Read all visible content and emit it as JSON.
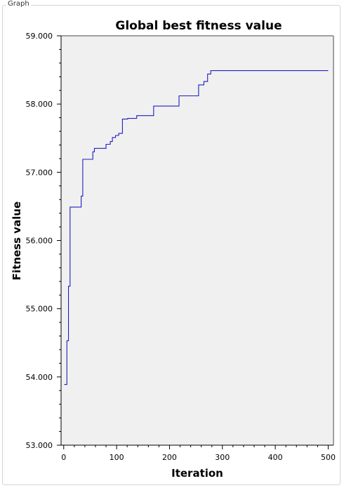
{
  "group": {
    "label": "Graph"
  },
  "chart_data": {
    "type": "line",
    "line_style": "step",
    "title": "Global best fitness value",
    "xlabel": "Iteration",
    "ylabel": "Fitness value",
    "xlim": [
      -5,
      510
    ],
    "ylim": [
      53,
      59
    ],
    "xticks": [
      0,
      100,
      200,
      300,
      400,
      500
    ],
    "xtick_labels": [
      "0",
      "100",
      "200",
      "300",
      "400",
      "500"
    ],
    "yticks": [
      53,
      54,
      55,
      56,
      57,
      58,
      59
    ],
    "ytick_labels": [
      "53.000",
      "54.000",
      "55.000",
      "56.000",
      "57.000",
      "58.000",
      "59.000"
    ],
    "grid": false,
    "colors": {
      "line": "#1f1fbf",
      "plot_bg": "#f0f0f0",
      "frame": "#a0a0a0"
    },
    "series": [
      {
        "x": [
          1,
          6,
          9,
          12,
          19,
          33,
          36,
          55,
          58,
          60,
          80,
          88,
          92,
          98,
          104,
          111,
          121,
          138,
          170,
          190,
          218,
          255,
          265,
          272,
          278,
          500
        ],
        "y": [
          53.89,
          54.53,
          55.33,
          56.49,
          56.49,
          56.65,
          57.19,
          57.3,
          57.35,
          57.35,
          57.41,
          57.45,
          57.51,
          57.54,
          57.57,
          57.78,
          57.79,
          57.83,
          57.97,
          57.97,
          58.12,
          58.28,
          58.33,
          58.44,
          58.49,
          58.49
        ]
      }
    ]
  }
}
